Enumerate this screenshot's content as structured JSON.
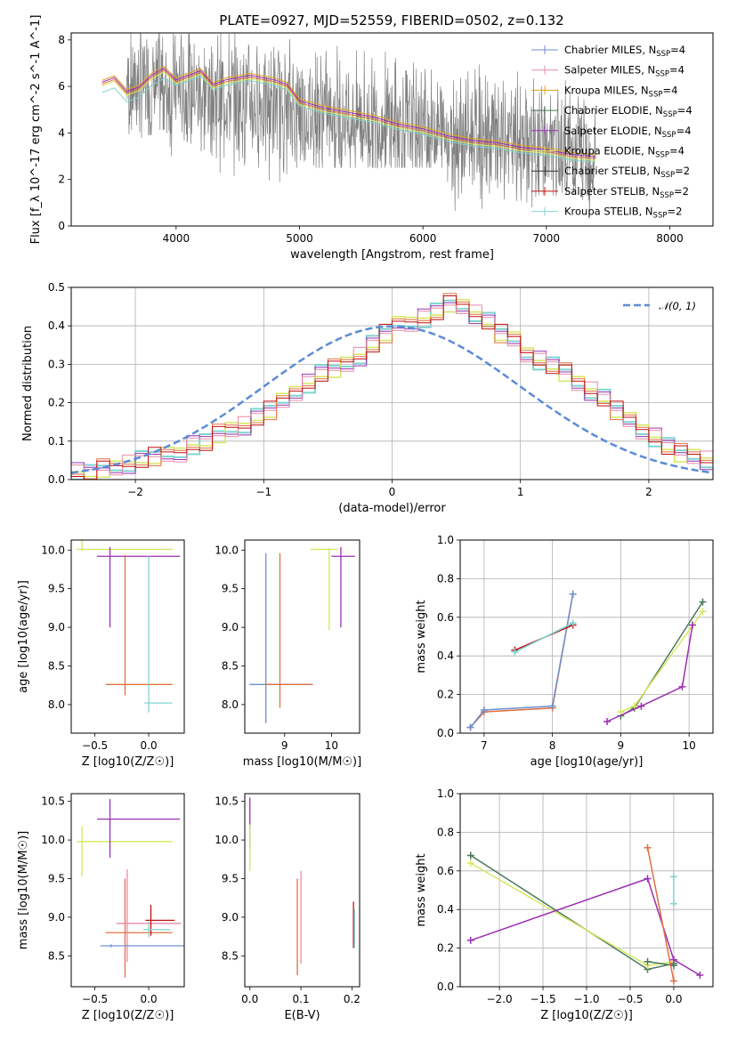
{
  "figure_title": "PLATE=0927, MJD=52559, FIBERID=0502, z=0.132",
  "colors": {
    "data_gray": "#808080",
    "chabrier_miles": "#6f8fd0",
    "salpeter_miles": "#e88aa8",
    "kroupa_miles": "#e0a020",
    "chabrier_elodie": "#4a7a5a",
    "salpeter_elodie": "#9a30b0",
    "kroupa_elodie": "#d4e860",
    "chabrier_stelib": "#303030",
    "salpeter_stelib": "#c01010",
    "kroupa_stelib": "#80d4d0",
    "orange_fit": "#e07040",
    "normal_dashed": "#5b8bd6"
  },
  "chart_data": [
    {
      "id": "spectrum",
      "type": "line",
      "xlabel": "wavelength [Angstrom, rest frame]",
      "ylabel": "Flux [f_λ 10^-17 erg cm^-2 s^-1 A^-1]",
      "xlim": [
        3150,
        8350
      ],
      "ylim": [
        0,
        8.3
      ],
      "xticks": [
        4000,
        5000,
        6000,
        7000,
        8000
      ],
      "yticks": [
        0,
        2,
        4,
        6,
        8
      ],
      "legend_position": "upper-right",
      "legend": [
        {
          "name": "Chabrier MILES, N_SSP=4",
          "main": "Chabrier MILES, N",
          "sub": "SSP",
          "post": "=4",
          "color_key": "chabrier_miles"
        },
        {
          "name": "Salpeter MILES, N_SSP=4",
          "main": "Salpeter MILES, N",
          "sub": "SSP",
          "post": "=4",
          "color_key": "salpeter_miles"
        },
        {
          "name": "Kroupa MILES, N_SSP=4",
          "main": "Kroupa MILES, N",
          "sub": "SSP",
          "post": "=4",
          "color_key": "kroupa_miles"
        },
        {
          "name": "Chabrier ELODIE, N_SSP=4",
          "main": "Chabrier ELODIE, N",
          "sub": "SSP",
          "post": "=4",
          "color_key": "chabrier_elodie"
        },
        {
          "name": "Salpeter ELODIE, N_SSP=4",
          "main": "Salpeter ELODIE, N",
          "sub": "SSP",
          "post": "=4",
          "color_key": "salpeter_elodie"
        },
        {
          "name": "Kroupa ELODIE, N_SSP=4",
          "main": "Kroupa ELODIE, N",
          "sub": "SSP",
          "post": "=4",
          "color_key": "kroupa_elodie"
        },
        {
          "name": "Chabrier STELIB, N_SSP=2",
          "main": "Chabrier STELIB, N",
          "sub": "SSP",
          "post": "=2",
          "color_key": "chabrier_stelib"
        },
        {
          "name": "Salpeter STELIB, N_SSP=2",
          "main": "Salpeter STELIB, N",
          "sub": "SSP",
          "post": "=2",
          "color_key": "salpeter_stelib"
        },
        {
          "name": "Kroupa STELIB, N_SSP=2",
          "main": "Kroupa STELIB, N",
          "sub": "SSP",
          "post": "=2",
          "color_key": "kroupa_stelib"
        }
      ],
      "model_curve": {
        "x": [
          3400,
          3500,
          3600,
          3700,
          3800,
          3900,
          4000,
          4100,
          4200,
          4300,
          4400,
          4500,
          4600,
          4700,
          4800,
          4900,
          5000,
          5200,
          5400,
          5600,
          5800,
          6000,
          6200,
          6400,
          6600,
          6800,
          7000,
          7200,
          7400
        ],
        "y": [
          6.1,
          6.3,
          5.7,
          5.9,
          6.4,
          6.7,
          6.2,
          6.4,
          6.6,
          6.0,
          6.2,
          6.3,
          6.4,
          6.3,
          6.2,
          6.0,
          5.3,
          5.0,
          4.8,
          4.6,
          4.3,
          4.1,
          3.8,
          3.6,
          3.5,
          3.3,
          3.2,
          3.0,
          2.9
        ]
      },
      "noise_regions": [
        {
          "x_range": [
            3600,
            4900
          ],
          "y_range": [
            0,
            8.3
          ]
        },
        {
          "x_range": [
            4900,
            6200
          ],
          "y_range": [
            2.5,
            8.3
          ]
        },
        {
          "x_range": [
            6200,
            7400
          ],
          "y_range": [
            0,
            7.0
          ]
        }
      ]
    },
    {
      "id": "residuals",
      "type": "step-histogram",
      "xlabel": "(data-model)/error",
      "ylabel": "Normed distribution",
      "xlim": [
        -2.5,
        2.5
      ],
      "ylim": [
        0,
        0.5
      ],
      "xticks": [
        -2,
        -1,
        0,
        1,
        2
      ],
      "yticks": [
        0.0,
        0.1,
        0.2,
        0.3,
        0.4,
        0.5
      ],
      "grid": true,
      "legend_position": "upper-right",
      "legend": [
        {
          "name": "N(0,1)",
          "label": "𝒩(0, 1)",
          "color_key": "normal_dashed",
          "dashed": true
        }
      ],
      "bin_width": 0.1,
      "bin_start": -2.5,
      "values": [
        0.02,
        0.02,
        0.03,
        0.03,
        0.04,
        0.05,
        0.06,
        0.06,
        0.07,
        0.09,
        0.1,
        0.12,
        0.13,
        0.14,
        0.16,
        0.18,
        0.2,
        0.23,
        0.25,
        0.28,
        0.29,
        0.3,
        0.32,
        0.35,
        0.38,
        0.4,
        0.41,
        0.42,
        0.44,
        0.46,
        0.45,
        0.43,
        0.41,
        0.38,
        0.36,
        0.33,
        0.31,
        0.3,
        0.28,
        0.25,
        0.23,
        0.21,
        0.18,
        0.15,
        0.13,
        0.11,
        0.09,
        0.07,
        0.06,
        0.05
      ]
    },
    {
      "id": "age-vs-z",
      "type": "errorbar",
      "xlabel": "Z [log10(Z/Z☉)]",
      "ylabel": "age [log10(age/yr)]",
      "xlim": [
        -0.72,
        0.33
      ],
      "ylim": [
        7.63,
        10.13
      ],
      "xticks": [
        -0.5,
        0.0
      ],
      "yticks": [
        8.0,
        8.5,
        9.0,
        9.5,
        10.0
      ],
      "points": [
        {
          "x": -0.62,
          "y": 10.01,
          "xerr": [
            0.05,
            0.84
          ],
          "yerr": [
            0.02,
            1.05
          ],
          "color_key": "kroupa_elodie"
        },
        {
          "x": -0.36,
          "y": 9.92,
          "xerr": [
            0.12,
            0.65
          ],
          "yerr": [
            0.92,
            0.12
          ],
          "color_key": "salpeter_elodie"
        },
        {
          "x": -0.22,
          "y": 8.26,
          "xerr": [
            0.18,
            0.44
          ],
          "yerr": [
            0.14,
            1.68
          ],
          "color_key": "orange_fit"
        },
        {
          "x": 0.0,
          "y": 8.02,
          "xerr": [
            0.04,
            0.22
          ],
          "yerr": [
            0.12,
            1.9
          ],
          "color_key": "kroupa_stelib"
        }
      ]
    },
    {
      "id": "age-vs-mass",
      "type": "errorbar",
      "xlabel": "mass [log10(M/M☉)]",
      "ylabel": "",
      "xlim": [
        8.15,
        10.6
      ],
      "ylim": [
        7.63,
        10.13
      ],
      "xticks": [
        9,
        10
      ],
      "yticks": [
        8.0,
        8.5,
        9.0,
        9.5,
        10.0
      ],
      "points": [
        {
          "x": 8.6,
          "y": 8.26,
          "xerr": [
            0.35,
            1.0
          ],
          "yerr": [
            0.5,
            1.7
          ],
          "color_key": "chabrier_miles"
        },
        {
          "x": 8.9,
          "y": 8.26,
          "xerr": [
            0.3,
            0.7
          ],
          "yerr": [
            0.3,
            1.7
          ],
          "color_key": "orange_fit"
        },
        {
          "x": 9.95,
          "y": 10.01,
          "xerr": [
            0.4,
            0.2
          ],
          "yerr": [
            1.05,
            0.02
          ],
          "color_key": "kroupa_elodie"
        },
        {
          "x": 10.2,
          "y": 9.92,
          "xerr": [
            0.2,
            0.3
          ],
          "yerr": [
            0.92,
            0.12
          ],
          "color_key": "salpeter_elodie"
        }
      ]
    },
    {
      "id": "massweight-vs-age",
      "type": "line",
      "xlabel": "age [log10(age/yr)]",
      "ylabel": "mass weight",
      "xlim": [
        6.65,
        10.35
      ],
      "ylim": [
        0,
        1.0
      ],
      "xticks": [
        7,
        8,
        9,
        10
      ],
      "yticks": [
        0.0,
        0.2,
        0.4,
        0.6,
        0.8,
        1.0
      ],
      "grid": true,
      "series": [
        {
          "color_key": "orange_fit",
          "x": [
            6.8,
            7.0,
            8.0,
            8.3
          ],
          "y": [
            0.03,
            0.11,
            0.13,
            0.72
          ]
        },
        {
          "color_key": "chabrier_miles",
          "x": [
            6.8,
            7.0,
            8.0,
            8.3
          ],
          "y": [
            0.03,
            0.12,
            0.14,
            0.72
          ]
        },
        {
          "color_key": "salpeter_stelib",
          "x": [
            7.45,
            8.3
          ],
          "y": [
            0.43,
            0.56
          ]
        },
        {
          "color_key": "kroupa_stelib",
          "x": [
            7.45,
            8.3
          ],
          "y": [
            0.42,
            0.57
          ]
        },
        {
          "color_key": "chabrier_elodie",
          "x": [
            9.0,
            9.2,
            10.2
          ],
          "y": [
            0.09,
            0.13,
            0.68
          ]
        },
        {
          "color_key": "kroupa_elodie",
          "x": [
            9.0,
            9.2,
            10.2
          ],
          "y": [
            0.11,
            0.14,
            0.63
          ]
        },
        {
          "color_key": "salpeter_elodie",
          "x": [
            8.8,
            9.3,
            9.9,
            10.05
          ],
          "y": [
            0.06,
            0.14,
            0.24,
            0.56
          ]
        }
      ]
    },
    {
      "id": "mass-vs-z",
      "type": "errorbar",
      "xlabel": "Z [log10(Z/Z☉)]",
      "ylabel": "mass [log10(M/M☉)]",
      "xlim": [
        -0.72,
        0.33
      ],
      "ylim": [
        8.1,
        10.6
      ],
      "xticks": [
        -0.5,
        0.0
      ],
      "yticks": [
        8.5,
        9.0,
        9.5,
        10.0,
        10.5
      ],
      "points": [
        {
          "x": -0.62,
          "y": 9.98,
          "xerr": [
            0.05,
            0.84
          ],
          "yerr": [
            0.45,
            0.2
          ],
          "color_key": "kroupa_elodie"
        },
        {
          "x": -0.36,
          "y": 10.27,
          "xerr": [
            0.12,
            0.65
          ],
          "yerr": [
            0.5,
            0.26
          ],
          "color_key": "salpeter_elodie"
        },
        {
          "x": -0.22,
          "y": 8.8,
          "xerr": [
            0.18,
            0.44
          ],
          "yerr": [
            0.58,
            0.7
          ],
          "color_key": "orange_fit"
        },
        {
          "x": -0.2,
          "y": 8.92,
          "xerr": [
            0.1,
            0.5
          ],
          "yerr": [
            0.5,
            0.7
          ],
          "color_key": "salpeter_miles"
        },
        {
          "x": 0.02,
          "y": 8.96,
          "xerr": [
            0.05,
            0.22
          ],
          "yerr": [
            0.2,
            0.2
          ],
          "color_key": "salpeter_stelib"
        },
        {
          "x": -0.35,
          "y": 8.63,
          "xerr": [
            0.1,
            0.7
          ],
          "yerr": [
            0.02,
            0.02
          ],
          "color_key": "chabrier_miles"
        },
        {
          "x": 0.0,
          "y": 8.84,
          "xerr": [
            0.05,
            0.2
          ],
          "yerr": [
            0.1,
            0.1
          ],
          "color_key": "kroupa_stelib"
        }
      ]
    },
    {
      "id": "mass-vs-ebv",
      "type": "errorbar",
      "xlabel": "E(B-V)",
      "ylabel": "",
      "xlim": [
        -0.01,
        0.215
      ],
      "ylim": [
        8.1,
        10.6
      ],
      "xticks": [
        0.0,
        0.1,
        0.2
      ],
      "yticks": [
        8.5,
        9.0,
        9.5,
        10.0,
        10.5
      ],
      "points": [
        {
          "x": 0.0,
          "y": 10.2,
          "yerr": [
            0.3,
            0.35
          ],
          "color_key": "salpeter_elodie"
        },
        {
          "x": 0.0,
          "y": 9.9,
          "yerr": [
            0.3,
            0.3
          ],
          "color_key": "kroupa_elodie"
        },
        {
          "x": 0.093,
          "y": 8.85,
          "yerr": [
            0.6,
            0.65
          ],
          "color_key": "orange_fit"
        },
        {
          "x": 0.1,
          "y": 9.0,
          "yerr": [
            0.6,
            0.6
          ],
          "color_key": "salpeter_miles"
        },
        {
          "x": 0.203,
          "y": 8.9,
          "yerr": [
            0.3,
            0.3
          ],
          "color_key": "salpeter_stelib"
        },
        {
          "x": 0.205,
          "y": 8.85,
          "yerr": [
            0.25,
            0.25
          ],
          "color_key": "kroupa_stelib"
        }
      ]
    },
    {
      "id": "massweight-vs-z",
      "type": "line",
      "xlabel": "Z [log10(Z/Z☉)]",
      "ylabel": "mass weight",
      "xlim": [
        -2.45,
        0.45
      ],
      "ylim": [
        0,
        1.0
      ],
      "xticks": [
        -2.0,
        -1.5,
        -1.0,
        -0.5,
        0.0
      ],
      "yticks": [
        0.0,
        0.2,
        0.4,
        0.6,
        0.8,
        1.0
      ],
      "grid": true,
      "series": [
        {
          "color_key": "chabrier_elodie",
          "x": [
            -2.33,
            -0.3,
            0.0
          ],
          "y": [
            0.68,
            0.09,
            0.12
          ]
        },
        {
          "color_key": "kroupa_elodie",
          "x": [
            -2.33,
            -0.3,
            0.0
          ],
          "y": [
            0.64,
            0.11,
            0.13
          ]
        },
        {
          "color_key": "chabrier_elodie",
          "x": [
            -0.3,
            0.0
          ],
          "y": [
            0.13,
            0.11
          ]
        },
        {
          "color_key": "salpeter_elodie",
          "x": [
            -2.33,
            -0.3,
            0.0,
            0.3
          ],
          "y": [
            0.24,
            0.56,
            0.14,
            0.06
          ]
        },
        {
          "color_key": "orange_fit",
          "x": [
            -0.3,
            0.0
          ],
          "y": [
            0.72,
            0.03
          ]
        },
        {
          "color_key": "kroupa_stelib",
          "x": [
            0.0,
            0.0
          ],
          "y": [
            0.43,
            0.57
          ]
        }
      ]
    }
  ]
}
